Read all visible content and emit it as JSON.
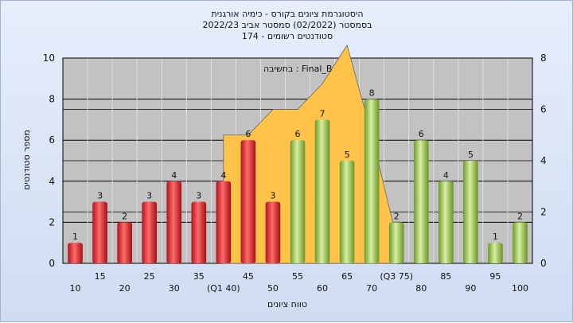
{
  "title_lines": [
    "היסטוגרמת ציונים בקורס - כימיה אורגנית",
    "בסמסטר  (02/2022)  סמסטר אביב 2022/23",
    "סטודנטים רשומים - 174"
  ],
  "chart_data": {
    "type": "bar",
    "annotation": "בחשיבה : Final_B",
    "xlabel": "טווח ציונים",
    "ylabel": "מספר סטודנטים",
    "ylim": [
      0,
      10
    ],
    "y2lim": [
      0,
      8
    ],
    "yticks": [
      0,
      2,
      4,
      6,
      8,
      10
    ],
    "y2ticks": [
      0,
      2,
      4,
      6,
      8
    ],
    "grid": true,
    "categories": [
      "10",
      "15",
      "20",
      "25",
      "30",
      "35",
      "(Q1 40)",
      "45",
      "50",
      "55",
      "60",
      "65",
      "70",
      "(Q3 75)",
      "80",
      "85",
      "90",
      "95",
      "100"
    ],
    "values": [
      1,
      3,
      2,
      3,
      4,
      3,
      4,
      6,
      3,
      6,
      7,
      5,
      8,
      2,
      6,
      4,
      5,
      1,
      2
    ],
    "series_colors": {
      "below_median": "#e0262b",
      "above_median": "#8cbf3f"
    },
    "split_after_index": 8,
    "overlay_area": {
      "color": "#ffc34a",
      "x": [
        "40",
        "45",
        "50",
        "55",
        "60",
        "65",
        "70",
        "75"
      ],
      "y": [
        5,
        5,
        6,
        6,
        7,
        8.5,
        5,
        1
      ]
    }
  }
}
